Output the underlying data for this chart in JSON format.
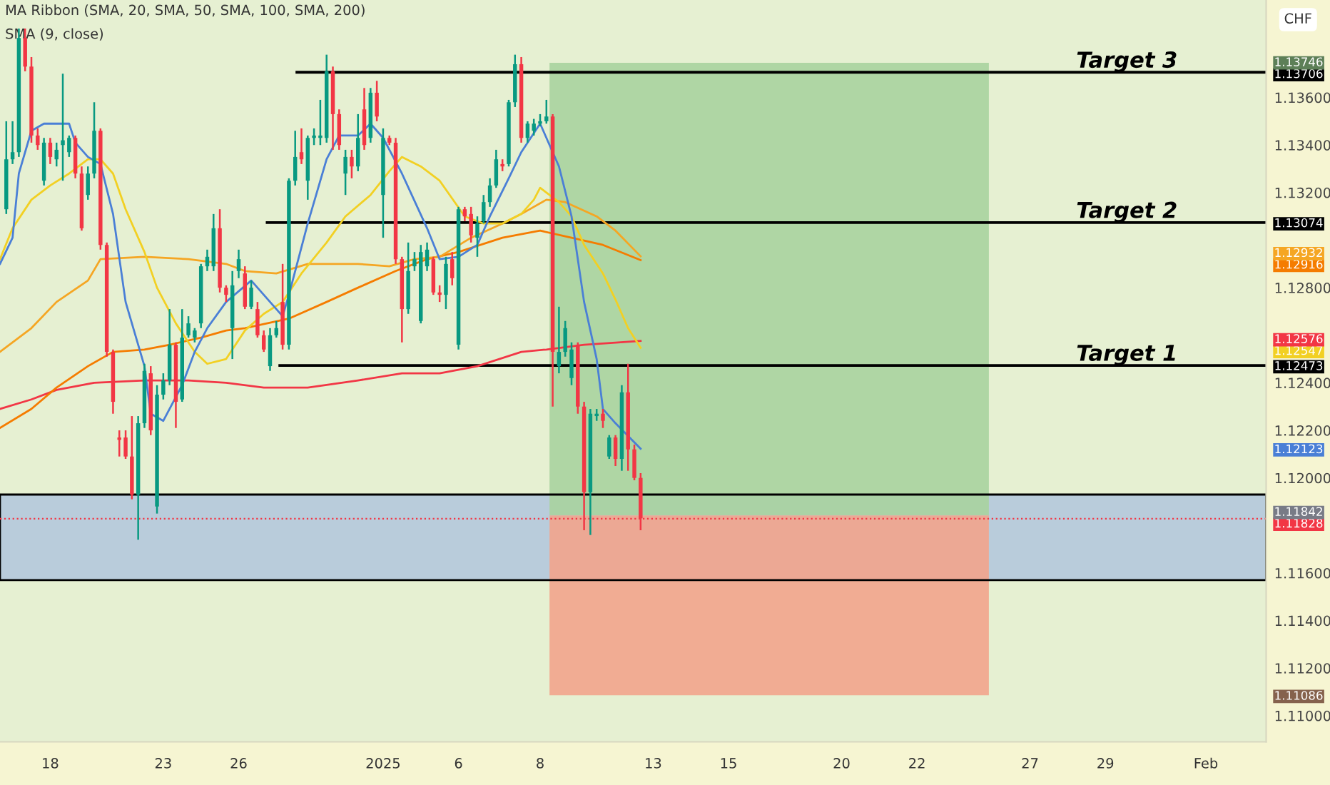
{
  "chart_data": {
    "type": "candlestick",
    "title": "MA Ribbon (SMA, 20, SMA, 50, SMA, 100, SMA, 200)",
    "subtitle": "SMA (9, close)",
    "categories": [
      null,
      null,
      null,
      null,
      null,
      null,
      null,
      null,
      "18",
      null,
      null,
      null,
      null,
      null,
      null,
      null,
      null,
      null,
      null,
      null,
      null,
      null,
      null,
      null,
      null,
      null,
      "23",
      null,
      null,
      null,
      null,
      null,
      null,
      null,
      null,
      null,
      null,
      null,
      "26",
      null,
      null,
      null,
      null,
      null,
      null,
      null,
      null,
      null,
      null,
      null,
      null,
      null,
      null,
      null,
      null,
      null,
      null,
      null,
      null,
      null,
      null,
      "2025",
      null,
      null,
      null,
      null,
      null,
      null,
      null,
      null,
      null,
      null,
      null,
      "6",
      null,
      null,
      null,
      null,
      null,
      null,
      null,
      null,
      null,
      null,
      null,
      null,
      "8",
      null,
      null,
      null,
      null,
      null,
      null,
      null,
      null,
      null,
      null,
      null,
      null,
      null,
      null,
      null,
      null,
      null,
      "13",
      null,
      null,
      null,
      null,
      null,
      null,
      null,
      null,
      null,
      null,
      null,
      "15",
      null,
      null,
      null,
      null,
      null,
      null,
      null,
      null,
      null,
      null,
      null,
      null,
      null,
      null,
      null,
      null,
      null,
      "20",
      null,
      null,
      null,
      null,
      null,
      null,
      null,
      null,
      null,
      null,
      null,
      "22",
      null,
      null,
      null,
      null,
      null,
      null,
      null,
      null,
      null,
      null,
      null,
      null,
      null,
      null,
      null,
      null,
      null,
      "27",
      null,
      null,
      null,
      null,
      null,
      null,
      null,
      null,
      null,
      null,
      null,
      "29",
      null,
      null,
      null,
      null,
      null,
      null,
      null,
      null,
      null,
      null,
      null,
      null,
      null,
      null,
      null,
      "Feb",
      null,
      null,
      null,
      null,
      null,
      null,
      null,
      null,
      null
    ],
    "ohlc": [
      null,
      [
        1.1313,
        1.135,
        1.1311,
        1.1334
      ],
      [
        1.1334,
        1.135,
        1.1332,
        1.1337
      ],
      [
        1.1337,
        1.1389,
        1.1335,
        1.1385
      ],
      [
        1.1385,
        1.1389,
        1.1371,
        1.1373
      ],
      [
        1.1373,
        1.1377,
        1.1341,
        1.1344
      ],
      [
        1.1344,
        1.1347,
        1.1338,
        1.134
      ],
      [
        1.1325,
        1.1343,
        1.1323,
        1.1341
      ],
      [
        1.1341,
        1.1343,
        1.1332,
        1.1335
      ],
      [
        1.1334,
        1.1341,
        1.1331,
        1.1338
      ],
      [
        1.134,
        1.137,
        1.1325,
        1.1342
      ],
      [
        1.1337,
        1.1344,
        1.1335,
        1.1343
      ],
      [
        1.1343,
        1.1344,
        1.1326,
        1.1328
      ],
      [
        1.1328,
        1.1331,
        1.1304,
        1.1305
      ],
      [
        1.1319,
        1.1331,
        1.1317,
        1.1328
      ],
      [
        1.1328,
        1.1358,
        1.1326,
        1.1346
      ],
      [
        1.1346,
        1.1347,
        1.1296,
        1.1298
      ],
      [
        1.1298,
        1.1299,
        1.1251,
        1.1253
      ],
      [
        1.1253,
        1.1254,
        1.1227,
        1.1232
      ],
      [
        1.1217,
        1.122,
        1.1209,
        1.1216
      ],
      [
        1.1217,
        1.122,
        1.1208,
        1.1209
      ],
      [
        1.1209,
        1.1226,
        1.1191,
        1.1193
      ],
      [
        1.1193,
        1.1226,
        1.1174,
        1.1223
      ],
      [
        1.1223,
        1.1248,
        1.1221,
        1.1245
      ],
      [
        1.1244,
        1.1247,
        1.1218,
        1.122
      ],
      [
        1.1188,
        1.1239,
        1.1185,
        1.1235
      ],
      [
        1.1235,
        1.1244,
        1.1233,
        1.1241
      ],
      [
        1.1241,
        1.1271,
        1.1239,
        1.1256
      ],
      [
        1.1256,
        1.1257,
        1.1221,
        1.1232
      ],
      [
        1.1233,
        1.1271,
        1.1232,
        1.1259
      ],
      [
        1.126,
        1.1268,
        1.1259,
        1.1265
      ],
      [
        1.1259,
        1.1263,
        1.1257,
        1.1262
      ],
      [
        1.1265,
        1.129,
        1.1263,
        1.1289
      ],
      [
        1.1289,
        1.1296,
        1.1287,
        1.1293
      ],
      [
        1.1289,
        1.1311,
        1.1287,
        1.1305
      ],
      [
        1.1305,
        1.1313,
        1.1278,
        1.128
      ],
      [
        1.128,
        1.1281,
        1.1274,
        1.1277
      ],
      [
        1.1263,
        1.1287,
        1.125,
        1.1281
      ],
      [
        1.1287,
        1.1296,
        1.1284,
        1.1292
      ],
      [
        1.1286,
        1.1289,
        1.1271,
        1.1272
      ],
      [
        1.1272,
        1.1283,
        1.1271,
        1.128
      ],
      [
        1.1271,
        1.1274,
        1.1259,
        1.126
      ],
      [
        1.126,
        1.1262,
        1.1253,
        1.1254
      ],
      [
        1.1247,
        1.1263,
        1.1245,
        1.126
      ],
      [
        1.126,
        1.1266,
        1.1259,
        1.1263
      ],
      [
        1.1274,
        1.129,
        1.1254,
        1.1256
      ],
      [
        1.1256,
        1.1326,
        1.1254,
        1.1325
      ],
      [
        1.1325,
        1.1346,
        1.1323,
        1.1335
      ],
      [
        1.1337,
        1.1347,
        1.1332,
        1.1334
      ],
      [
        1.1325,
        1.1344,
        1.1317,
        1.1343
      ],
      [
        1.1343,
        1.1347,
        1.134,
        1.1344
      ],
      [
        1.1343,
        1.1359,
        1.134,
        1.1344
      ],
      [
        1.1343,
        1.1378,
        1.1341,
        1.1371
      ],
      [
        1.1371,
        1.1373,
        1.1338,
        1.1353
      ],
      [
        1.1353,
        1.1355,
        1.1338,
        1.134
      ],
      [
        1.1328,
        1.1338,
        1.1319,
        1.1335
      ],
      [
        1.1335,
        1.1338,
        1.1326,
        1.1331
      ],
      [
        1.1331,
        1.1353,
        1.1329,
        1.1343
      ],
      [
        1.1355,
        1.1364,
        1.1338,
        1.134
      ],
      [
        1.1343,
        1.1364,
        1.1341,
        1.1362
      ],
      [
        1.1362,
        1.1367,
        1.135,
        1.1352
      ],
      [
        1.1319,
        1.1347,
        1.1301,
        1.1343
      ],
      [
        1.1343,
        1.1344,
        1.134,
        1.1341
      ],
      [
        1.1341,
        1.1343,
        1.129,
        1.1292
      ],
      [
        1.1292,
        1.1293,
        1.1257,
        1.1271
      ],
      [
        1.1271,
        1.1299,
        1.1269,
        1.1287
      ],
      [
        1.1289,
        1.1295,
        1.1287,
        1.1292
      ],
      [
        1.1266,
        1.1298,
        1.1265,
        1.1295
      ],
      [
        1.1289,
        1.1299,
        1.1287,
        1.1296
      ],
      [
        1.1292,
        1.1293,
        1.1277,
        1.1278
      ],
      [
        1.1278,
        1.1281,
        1.1274,
        1.1277
      ],
      [
        1.1277,
        1.1293,
        1.1271,
        1.129
      ],
      [
        1.1292,
        1.1295,
        1.1281,
        1.1284
      ],
      [
        1.1256,
        1.1314,
        1.1254,
        1.1313
      ],
      [
        1.1313,
        1.1314,
        1.1308,
        1.131
      ],
      [
        1.1311,
        1.1314,
        1.1299,
        1.1302
      ],
      [
        1.1301,
        1.131,
        1.1293,
        1.1307
      ],
      [
        1.1308,
        1.1319,
        1.1307,
        1.1316
      ],
      [
        1.1316,
        1.1326,
        1.1314,
        1.1323
      ],
      [
        1.1323,
        1.1338,
        1.1322,
        1.1334
      ],
      [
        1.1332,
        1.1334,
        1.1329,
        1.1331
      ],
      [
        1.1332,
        1.1359,
        1.1331,
        1.1358
      ],
      [
        1.1358,
        1.1378,
        1.1356,
        1.1374
      ],
      [
        1.1374,
        1.1377,
        1.1341,
        1.1343
      ],
      [
        1.1343,
        1.135,
        1.1341,
        1.1349
      ],
      [
        1.1346,
        1.1351,
        1.1344,
        1.1349
      ],
      [
        1.1349,
        1.1353,
        1.1348,
        1.135
      ],
      [
        1.135,
        1.1359,
        1.1349,
        1.1352
      ],
      [
        1.1352,
        1.1353,
        1.123,
        1.1253
      ],
      [
        1.1247,
        1.1272,
        1.1244,
        1.1253
      ],
      [
        1.1253,
        1.1266,
        1.1251,
        1.1263
      ],
      [
        1.1242,
        1.1257,
        1.1239,
        1.1254
      ],
      [
        1.1256,
        1.1257,
        1.1227,
        1.123
      ],
      [
        1.123,
        1.1232,
        1.1178,
        1.1194
      ],
      [
        1.1194,
        1.1229,
        1.1176,
        1.1227
      ],
      [
        1.1226,
        1.1229,
        1.1224,
        1.1227
      ],
      [
        1.1227,
        1.1229,
        1.1221,
        1.1224
      ],
      [
        1.1209,
        1.1218,
        1.1208,
        1.1217
      ],
      [
        1.1217,
        1.1218,
        1.1205,
        1.1208
      ],
      [
        1.1208,
        1.1239,
        1.1203,
        1.1236
      ],
      [
        1.1236,
        1.1248,
        1.1203,
        1.1212
      ],
      [
        1.1212,
        1.1214,
        1.1199,
        1.12
      ],
      [
        1.12,
        1.1202,
        1.1178,
        1.1183
      ],
      null,
      null,
      null,
      null,
      null,
      null,
      null,
      null,
      null,
      null,
      null,
      null,
      null,
      null,
      null,
      null,
      null,
      null,
      null,
      null,
      null,
      null,
      null,
      null,
      null,
      null,
      null,
      null,
      null,
      null,
      null,
      null,
      null,
      null,
      null,
      null,
      null,
      null,
      null,
      null,
      null,
      null,
      null,
      null,
      null,
      null,
      null,
      null,
      null,
      null,
      null,
      null,
      null,
      null,
      null,
      null,
      null,
      null,
      null,
      null,
      null,
      null,
      null,
      null,
      null,
      null,
      null,
      null,
      null,
      null,
      null,
      null,
      null,
      null,
      null,
      null,
      null,
      null,
      null,
      null,
      null,
      null,
      null,
      null,
      null,
      null,
      null,
      null,
      null,
      null,
      null,
      null,
      null,
      null,
      null,
      null,
      null,
      null,
      null
    ],
    "series": [
      {
        "type": "line",
        "color": "#f23645",
        "values": [
          1.1229,
          null,
          null,
          null,
          null,
          1.1233,
          null,
          null,
          null,
          1.1237,
          null,
          null,
          null,
          null,
          null,
          1.124,
          null,
          null,
          null,
          null,
          null,
          null,
          null,
          1.1241,
          null,
          null,
          null,
          null,
          null,
          null,
          1.1241,
          null,
          null,
          null,
          null,
          null,
          1.124,
          null,
          null,
          null,
          null,
          null,
          1.1238,
          null,
          null,
          null,
          null,
          null,
          null,
          1.1238,
          null,
          null,
          null,
          null,
          null,
          null,
          null,
          1.1241,
          null,
          null,
          null,
          null,
          null,
          null,
          1.1244,
          null,
          null,
          null,
          null,
          null,
          1.1244,
          null,
          null,
          null,
          null,
          null,
          1.1247,
          null,
          null,
          null,
          null,
          null,
          null,
          1.1253,
          null,
          null,
          null,
          1.1254,
          null,
          null,
          null,
          null,
          null,
          1.1256,
          null,
          null,
          null,
          null,
          null,
          null,
          null,
          null,
          1.12576,
          null,
          null,
          null,
          null,
          null,
          null,
          null,
          null,
          null,
          null,
          null,
          null,
          null,
          null,
          null,
          null,
          null,
          null,
          null,
          null,
          null,
          null,
          null,
          null,
          null,
          null,
          null,
          null,
          null,
          null,
          null,
          null,
          null,
          null,
          null,
          null,
          null,
          null,
          null,
          null,
          null,
          null,
          null,
          null,
          null,
          null,
          null,
          null,
          null,
          null,
          null,
          null,
          null,
          null,
          null,
          null,
          null,
          null,
          null,
          null,
          null,
          null,
          null,
          null,
          null,
          null,
          null,
          null,
          null,
          null,
          null,
          null,
          null,
          null,
          null,
          null,
          null,
          null,
          null,
          null,
          null,
          null,
          null,
          null,
          null,
          null,
          null,
          null,
          null,
          null,
          null,
          null,
          null,
          null,
          null,
          null,
          null,
          null,
          null
        ]
      },
      {
        "type": "line",
        "color": "#f57c00",
        "values": [
          1.1221,
          null,
          null,
          null,
          null,
          1.1229,
          null,
          null,
          null,
          1.1238,
          null,
          null,
          null,
          null,
          1.1247,
          null,
          null,
          null,
          1.1253,
          null,
          null,
          null,
          null,
          1.1254,
          null,
          null,
          null,
          1.1256,
          null,
          null,
          null,
          null,
          1.1259,
          null,
          null,
          null,
          1.1262,
          null,
          null,
          1.1263,
          null,
          null,
          null,
          null,
          null,
          null,
          1.1267,
          null,
          null,
          null,
          null,
          null,
          1.1274,
          null,
          null,
          null,
          null,
          1.128,
          null,
          null,
          null,
          null,
          null,
          1.1287,
          null,
          null,
          null,
          null,
          1.1292,
          null,
          null,
          null,
          null,
          1.1295,
          null,
          null,
          null,
          null,
          null,
          null,
          1.1301,
          null,
          null,
          null,
          null,
          null,
          1.1304,
          null,
          null,
          null,
          null,
          1.1301,
          null,
          null,
          null,
          null,
          1.1298,
          null,
          null,
          null,
          null,
          null,
          1.12916,
          null,
          null,
          null,
          null,
          null,
          null,
          null,
          null,
          null,
          null,
          null,
          null,
          null,
          null,
          null,
          null,
          null,
          null,
          null,
          null,
          null,
          null,
          null,
          null,
          null,
          null,
          null,
          null,
          null,
          null,
          null,
          null,
          null,
          null,
          null,
          null,
          null,
          null,
          null,
          null,
          null,
          null,
          null,
          null,
          null,
          null,
          null,
          null,
          null,
          null,
          null,
          null,
          null,
          null,
          null,
          null,
          null,
          null,
          null,
          null,
          null,
          null,
          null,
          null,
          null,
          null,
          null,
          null,
          null,
          null,
          null,
          null,
          null,
          null,
          null,
          null,
          null,
          null,
          null,
          null,
          null,
          null,
          null,
          null,
          null,
          null,
          null,
          null,
          null,
          null,
          null,
          null,
          null,
          null,
          null,
          null,
          null,
          null,
          null
        ]
      },
      {
        "type": "line",
        "color": "#f5a623",
        "values": [
          1.1253,
          null,
          null,
          null,
          null,
          1.1263,
          null,
          null,
          null,
          1.1274,
          null,
          null,
          null,
          null,
          1.1283,
          null,
          1.1292,
          null,
          null,
          null,
          null,
          null,
          null,
          1.1293,
          null,
          null,
          null,
          null,
          null,
          null,
          1.1292,
          null,
          null,
          null,
          null,
          null,
          1.129,
          null,
          null,
          1.1287,
          null,
          null,
          null,
          null,
          1.1286,
          null,
          null,
          null,
          null,
          1.129,
          null,
          null,
          null,
          null,
          null,
          null,
          null,
          1.129,
          null,
          null,
          null,
          null,
          1.1289,
          null,
          null,
          null,
          1.1292,
          null,
          null,
          null,
          1.1293,
          null,
          null,
          null,
          null,
          1.1301,
          null,
          null,
          null,
          null,
          1.1307,
          null,
          null,
          1.1311,
          null,
          null,
          null,
          1.1317,
          null,
          null,
          1.1316,
          null,
          null,
          null,
          null,
          1.131,
          null,
          null,
          1.1304,
          null,
          null,
          null,
          1.12932,
          null,
          null,
          null,
          null,
          null,
          null,
          null,
          null,
          null,
          null,
          null,
          null,
          null,
          null,
          null,
          null,
          null,
          null,
          null,
          null,
          null,
          null,
          null,
          null,
          null,
          null,
          null,
          null,
          null,
          null,
          null,
          null,
          null,
          null,
          null,
          null,
          null,
          null,
          null,
          null,
          null,
          null,
          null,
          null,
          null,
          null,
          null,
          null,
          null,
          null,
          null,
          null,
          null,
          null,
          null,
          null,
          null,
          null,
          null,
          null,
          null,
          null,
          null,
          null,
          null,
          null,
          null,
          null,
          null,
          null,
          null,
          null,
          null,
          null,
          null,
          null,
          null,
          null,
          null,
          null,
          null,
          null,
          null,
          null,
          null,
          null,
          null,
          null,
          null,
          null,
          null,
          null,
          null,
          null,
          null,
          null,
          null,
          null,
          null
        ]
      },
      {
        "type": "line",
        "color": "#f2d023",
        "values": [
          1.1292,
          null,
          1.1305,
          null,
          null,
          1.1317,
          null,
          null,
          1.1323,
          null,
          null,
          1.1328,
          null,
          null,
          1.1334,
          null,
          1.1334,
          null,
          1.1328,
          null,
          1.1313,
          null,
          null,
          1.1295,
          null,
          1.128,
          null,
          null,
          1.1265,
          null,
          null,
          1.1253,
          null,
          1.1248,
          null,
          null,
          1.125,
          null,
          null,
          1.1262,
          null,
          null,
          1.1269,
          null,
          null,
          1.1274,
          null,
          null,
          1.1286,
          null,
          null,
          null,
          1.1299,
          null,
          null,
          1.131,
          null,
          null,
          null,
          1.1319,
          null,
          null,
          1.1329,
          null,
          1.1335,
          null,
          null,
          1.1331,
          null,
          null,
          1.1325,
          null,
          null,
          null,
          1.131,
          null,
          null,
          1.1307,
          null,
          null,
          1.1307,
          null,
          null,
          1.1311,
          null,
          1.1317,
          1.1322,
          null,
          null,
          1.1316,
          null,
          1.131,
          null,
          1.1298,
          null,
          null,
          1.1286,
          null,
          1.1275,
          null,
          1.1263,
          null,
          1.12547,
          null,
          null,
          null,
          null,
          null,
          null,
          null,
          null,
          null,
          null,
          null,
          null,
          null,
          null,
          null,
          null,
          null,
          null,
          null,
          null,
          null,
          null,
          null,
          null,
          null,
          null,
          null,
          null,
          null,
          null,
          null,
          null,
          null,
          null,
          null,
          null,
          null,
          null,
          null,
          null,
          null,
          null,
          null,
          null,
          null,
          null,
          null,
          null,
          null,
          null,
          null,
          null,
          null,
          null,
          null,
          null,
          null,
          null,
          null,
          null,
          null,
          null,
          null,
          null,
          null,
          null,
          null,
          null,
          null,
          null,
          null,
          null,
          null,
          null,
          null,
          null,
          null,
          null,
          null,
          null,
          null,
          null,
          null,
          null,
          null,
          null,
          null,
          null,
          null,
          null,
          null,
          null,
          null,
          null,
          null,
          null,
          null,
          null,
          null
        ]
      },
      {
        "type": "line",
        "color": "#4a7fd6",
        "values": [
          1.129,
          null,
          1.1301,
          1.1328,
          null,
          1.1346,
          null,
          1.1349,
          null,
          null,
          null,
          1.1349,
          1.1341,
          null,
          1.1335,
          null,
          1.1332,
          null,
          1.1311,
          null,
          1.1274,
          null,
          null,
          1.1247,
          1.1227,
          null,
          1.1224,
          null,
          null,
          1.1239,
          null,
          1.1253,
          null,
          1.1263,
          null,
          null,
          1.1274,
          null,
          null,
          null,
          1.1283,
          null,
          1.1277,
          null,
          null,
          1.1268,
          1.1277,
          null,
          null,
          1.1307,
          null,
          null,
          1.1334,
          null,
          1.1344,
          null,
          null,
          1.1344,
          null,
          1.1349,
          null,
          1.1343,
          null,
          null,
          1.1328,
          null,
          null,
          null,
          1.1305,
          null,
          1.1292,
          null,
          null,
          1.1293,
          null,
          null,
          1.1298,
          null,
          1.131,
          null,
          null,
          1.1326,
          null,
          1.1337,
          null,
          null,
          1.1349,
          null,
          null,
          1.1331,
          null,
          1.131,
          null,
          1.1274,
          null,
          1.125,
          1.1229,
          null,
          1.1223,
          null,
          null,
          null,
          1.12123,
          null,
          null,
          null,
          null,
          null,
          null,
          null,
          null,
          null,
          null,
          null,
          null,
          null,
          null,
          null,
          null,
          null,
          null,
          null,
          null,
          null,
          null,
          null,
          null,
          null,
          null,
          null,
          null,
          null,
          null,
          null,
          null,
          null,
          null,
          null,
          null,
          null,
          null,
          null,
          null,
          null,
          null,
          null,
          null,
          null,
          null,
          null,
          null,
          null,
          null,
          null,
          null,
          null,
          null,
          null,
          null,
          null,
          null,
          null,
          null,
          null,
          null,
          null,
          null,
          null,
          null,
          null,
          null,
          null,
          null,
          null,
          null,
          null,
          null,
          null,
          null,
          null,
          null,
          null,
          null,
          null,
          null,
          null,
          null,
          null,
          null,
          null,
          null,
          null,
          null,
          null,
          null,
          null,
          null,
          null,
          null,
          null,
          null,
          null
        ]
      }
    ],
    "ylim": [
      1.1089,
      1.1401
    ],
    "yticks": [
      {
        "value": 1.11,
        "label": "1.11000"
      },
      {
        "value": 1.11086,
        "label": "1.11086"
      },
      {
        "value": 1.112,
        "label": "1.11200"
      },
      {
        "value": 1.114,
        "label": "1.11400"
      },
      {
        "value": 1.116,
        "label": "1.11600"
      },
      {
        "value": 1.11828,
        "label": "1.11828"
      },
      {
        "value": 1.11842,
        "label": "1.11842"
      },
      {
        "value": 1.12,
        "label": "1.12000"
      },
      {
        "value": 1.12123,
        "label": "1.12123"
      },
      {
        "value": 1.122,
        "label": "1.12200"
      },
      {
        "value": 1.124,
        "label": "1.12400"
      },
      {
        "value": 1.12473,
        "label": "1.12473"
      },
      {
        "value": 1.12547,
        "label": "1.12547"
      },
      {
        "value": 1.12576,
        "label": "1.12576"
      },
      {
        "value": 1.128,
        "label": "1.12800"
      },
      {
        "value": 1.12916,
        "label": "1.12916"
      },
      {
        "value": 1.12932,
        "label": "1.12932"
      },
      {
        "value": 1.13074,
        "label": "1.13074"
      },
      {
        "value": 1.132,
        "label": "1.13200"
      },
      {
        "value": 1.134,
        "label": "1.13400"
      },
      {
        "value": 1.136,
        "label": "1.13600"
      },
      {
        "value": 1.13706,
        "label": "1.13706"
      },
      {
        "value": 1.13746,
        "label": "1.13746"
      }
    ],
    "bands": [
      {
        "axis": "y",
        "from": 1.1157,
        "to": 1.1193,
        "color": "#b4c8dc"
      },
      {
        "axis": "y",
        "from": 1.11842,
        "to": 1.13746,
        "color": "#a9d39e"
      },
      {
        "axis": "y",
        "from": 1.11086,
        "to": 1.11842,
        "color": "#f2a48c"
      }
    ],
    "ref_lines": [
      {
        "axis": "y",
        "value": 1.13706,
        "label": "Target 3",
        "color": "#000000"
      },
      {
        "axis": "y",
        "value": 1.13074,
        "label": "Target 2",
        "color": "#000000"
      },
      {
        "axis": "y",
        "value": 1.12473,
        "label": "Target 1",
        "color": "#000000"
      },
      {
        "axis": "y",
        "value": 1.11828,
        "color": "#f23645",
        "line_style": "dotted"
      }
    ],
    "annotations": [
      "CHF"
    ]
  }
}
